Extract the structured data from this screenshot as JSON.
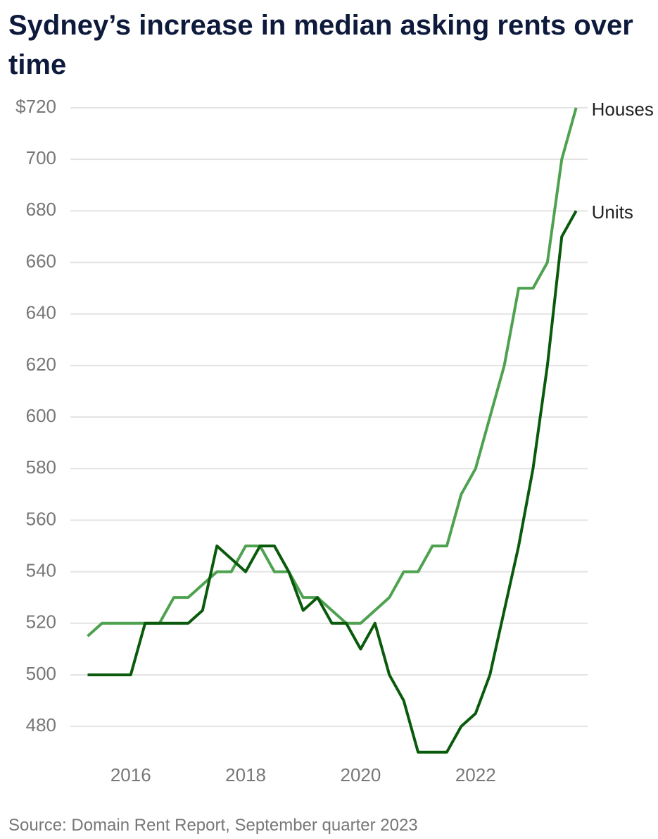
{
  "chart_data": {
    "type": "line",
    "title": "Sydney’s increase in median asking rents over time",
    "source": "Source: Domain Rent Report, September quarter 2023",
    "x": [
      2015.25,
      2015.5,
      2015.75,
      2016,
      2016.25,
      2016.5,
      2016.75,
      2017,
      2017.25,
      2017.5,
      2017.75,
      2018,
      2018.25,
      2018.5,
      2018.75,
      2019,
      2019.25,
      2019.5,
      2019.75,
      2020,
      2020.25,
      2020.5,
      2020.75,
      2021,
      2021.25,
      2021.5,
      2021.75,
      2022,
      2022.25,
      2022.5,
      2022.75,
      2023,
      2023.25,
      2023.5,
      2023.75
    ],
    "series": [
      {
        "name": "Houses",
        "color": "#4ea24f",
        "values": [
          515,
          520,
          520,
          520,
          520,
          520,
          530,
          530,
          535,
          540,
          540,
          550,
          550,
          540,
          540,
          530,
          530,
          525,
          520,
          520,
          525,
          530,
          540,
          540,
          550,
          550,
          570,
          580,
          600,
          620,
          650,
          650,
          660,
          700,
          720
        ]
      },
      {
        "name": "Units",
        "color": "#0a5a0c",
        "values": [
          500,
          500,
          500,
          500,
          520,
          520,
          520,
          520,
          525,
          550,
          545,
          540,
          550,
          550,
          540,
          525,
          530,
          520,
          520,
          510,
          520,
          500,
          490,
          470,
          470,
          470,
          480,
          485,
          500,
          525,
          550,
          580,
          620,
          670,
          680
        ]
      }
    ],
    "xlim": [
      2014.95,
      2023.95
    ],
    "xticks": [
      2016,
      2018,
      2020,
      2022
    ],
    "ylim": [
      465,
      720
    ],
    "yticks": [
      480,
      500,
      520,
      540,
      560,
      580,
      600,
      620,
      640,
      660,
      680,
      700,
      {
        "value": 720,
        "label": "$720"
      }
    ],
    "grid": true
  }
}
